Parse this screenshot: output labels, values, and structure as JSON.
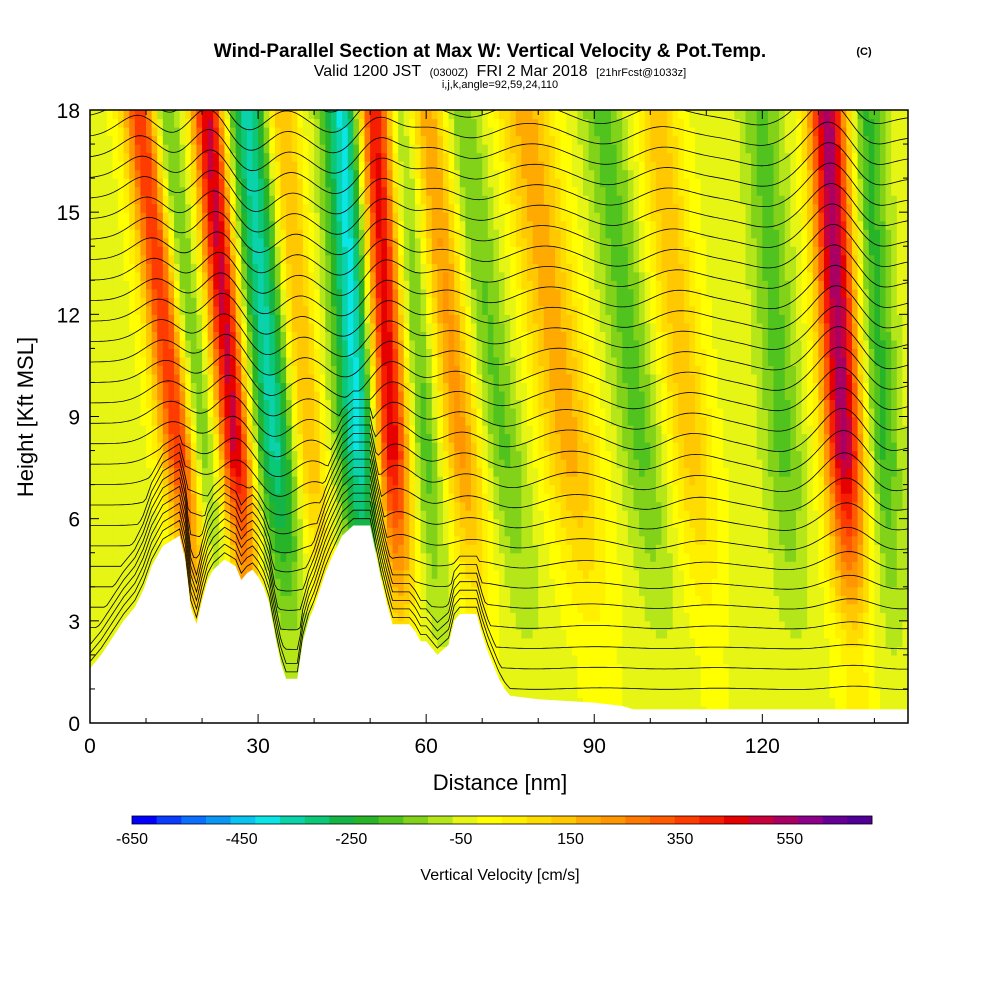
{
  "header": {
    "title": "Wind-Parallel Section at Max W: Vertical Velocity & Pot.Temp.",
    "title_mark": "(C)",
    "valid_prefix": "Valid 1200 JST",
    "valid_utc": "(0300Z)",
    "valid_date": "FRI 2 Mar 2018",
    "forecast": "[21hrFcst@1033z]",
    "indices": "i,j,k,angle=92,59,24,110"
  },
  "chart_data": {
    "type": "heatmap",
    "xlabel": "Distance [nm]",
    "ylabel": "Height [Kft MSL]",
    "xlim": [
      0,
      146
    ],
    "ylim": [
      0,
      18
    ],
    "x_ticks": [
      0,
      30,
      60,
      90,
      120
    ],
    "x_tick_labels": [
      "0",
      "30",
      "60",
      "90",
      "120"
    ],
    "y_ticks": [
      0,
      3,
      6,
      9,
      12,
      15,
      18
    ],
    "y_tick_labels": [
      "0",
      "3",
      "6",
      "9",
      "12",
      "15",
      "18"
    ],
    "colorbar": {
      "title": "Vertical Velocity [cm/s]",
      "min": -650,
      "max": 700,
      "step": 50,
      "tick_values": [
        -650,
        -450,
        -250,
        -50,
        150,
        350,
        550
      ],
      "tick_labels": [
        "-650",
        "-450",
        "-250",
        "-50",
        "150",
        "350",
        "550"
      ],
      "colors": [
        "#0000ff",
        "#0a3cff",
        "#0a6eff",
        "#0a96f5",
        "#0ac3f0",
        "#0ae6e6",
        "#0ad2aa",
        "#0ac878",
        "#14b446",
        "#28b428",
        "#50c31e",
        "#82d219",
        "#b4e619",
        "#e6f514",
        "#ffff00",
        "#fff000",
        "#ffdc00",
        "#ffc800",
        "#ffaa00",
        "#ff9600",
        "#ff7800",
        "#ff5a00",
        "#ff3c00",
        "#f51e00",
        "#e60000",
        "#c8003c",
        "#aa0064",
        "#8c008c",
        "#640096",
        "#500096"
      ]
    },
    "waves": [
      {
        "name": "",
        "x_surface": 22,
        "slope_nm_per_kft": 0.7,
        "peak_w": 550,
        "width": 3.5
      },
      {
        "name": "",
        "x_surface": 25,
        "slope_nm_per_kft": 0.7,
        "peak_w": -300,
        "width": 3
      },
      {
        "name": "",
        "x_surface": 30,
        "slope_nm_per_kft": 0.5,
        "peak_w": 600,
        "width": 3
      },
      {
        "name": "",
        "x_surface": 37,
        "slope_nm_per_kft": 0.5,
        "peak_w": -350,
        "width": 4
      },
      {
        "name": "",
        "x_surface": 43,
        "slope_nm_per_kft": 0.5,
        "peak_w": 250,
        "width": 3
      },
      {
        "name": "",
        "x_surface": 51,
        "slope_nm_per_kft": 0.3,
        "peak_w": -450,
        "width": 4
      },
      {
        "name": "",
        "x_surface": 56,
        "slope_nm_per_kft": 0.3,
        "peak_w": 650,
        "width": 3.5
      },
      {
        "name": "",
        "x_surface": 64,
        "slope_nm_per_kft": 0.5,
        "peak_w": -200,
        "width": 3.5
      },
      {
        "name": "",
        "x_surface": 71,
        "slope_nm_per_kft": 0.6,
        "peak_w": 300,
        "width": 4
      },
      {
        "name": "",
        "x_surface": 80,
        "slope_nm_per_kft": 0.8,
        "peak_w": -150,
        "width": 4
      },
      {
        "name": "",
        "x_surface": 92,
        "slope_nm_per_kft": 0.8,
        "peak_w": 250,
        "width": 5
      },
      {
        "name": "",
        "x_surface": 104,
        "slope_nm_per_kft": 0.7,
        "peak_w": -150,
        "width": 4
      },
      {
        "name": "",
        "x_surface": 112,
        "slope_nm_per_kft": 0.6,
        "peak_w": 200,
        "width": 4
      },
      {
        "name": "",
        "x_surface": 127,
        "slope_nm_per_kft": 0.4,
        "peak_w": -150,
        "width": 3.5
      },
      {
        "name": "",
        "x_surface": 137,
        "slope_nm_per_kft": 0.3,
        "peak_w": 650,
        "width": 3.5
      },
      {
        "name": "",
        "x_surface": 144,
        "slope_nm_per_kft": 0.3,
        "peak_w": -200,
        "width": 3
      }
    ],
    "terrain_kft": [
      [
        0,
        1.6
      ],
      [
        2,
        2.0
      ],
      [
        4,
        2.5
      ],
      [
        6,
        3.0
      ],
      [
        8,
        3.4
      ],
      [
        9.5,
        3.9
      ],
      [
        11,
        4.6
      ],
      [
        13,
        5.2
      ],
      [
        16,
        5.5
      ],
      [
        17,
        4.8
      ],
      [
        18,
        3.4
      ],
      [
        19,
        2.9
      ],
      [
        20,
        3.6
      ],
      [
        21,
        4.2
      ],
      [
        22,
        4.5
      ],
      [
        24,
        4.8
      ],
      [
        26,
        4.6
      ],
      [
        27,
        4.2
      ],
      [
        28,
        4.4
      ],
      [
        29,
        4.5
      ],
      [
        30,
        4.3
      ],
      [
        31,
        4.0
      ],
      [
        32,
        3.5
      ],
      [
        33,
        2.6
      ],
      [
        34,
        1.8
      ],
      [
        35,
        1.3
      ],
      [
        37,
        1.3
      ],
      [
        38,
        2.4
      ],
      [
        39,
        3.0
      ],
      [
        40,
        3.4
      ],
      [
        41,
        3.9
      ],
      [
        42,
        4.4
      ],
      [
        43,
        4.8
      ],
      [
        45,
        5.5
      ],
      [
        47,
        5.8
      ],
      [
        50,
        5.8
      ],
      [
        51,
        5.0
      ],
      [
        52,
        4.2
      ],
      [
        53,
        3.5
      ],
      [
        54,
        2.9
      ],
      [
        57,
        2.9
      ],
      [
        58,
        2.7
      ],
      [
        59,
        2.4
      ],
      [
        60,
        2.4
      ],
      [
        61,
        2.2
      ],
      [
        62,
        2.0
      ],
      [
        64,
        2.3
      ],
      [
        65,
        3.0
      ],
      [
        66,
        3.2
      ],
      [
        69,
        3.2
      ],
      [
        70,
        2.6
      ],
      [
        71,
        2.1
      ],
      [
        72,
        1.7
      ],
      [
        73,
        1.3
      ],
      [
        74,
        1.0
      ],
      [
        75,
        0.8
      ],
      [
        80,
        0.7
      ],
      [
        90,
        0.6
      ],
      [
        95,
        0.5
      ],
      [
        97,
        0.4
      ],
      [
        146,
        0.4
      ]
    ],
    "theta_contours": 30
  }
}
